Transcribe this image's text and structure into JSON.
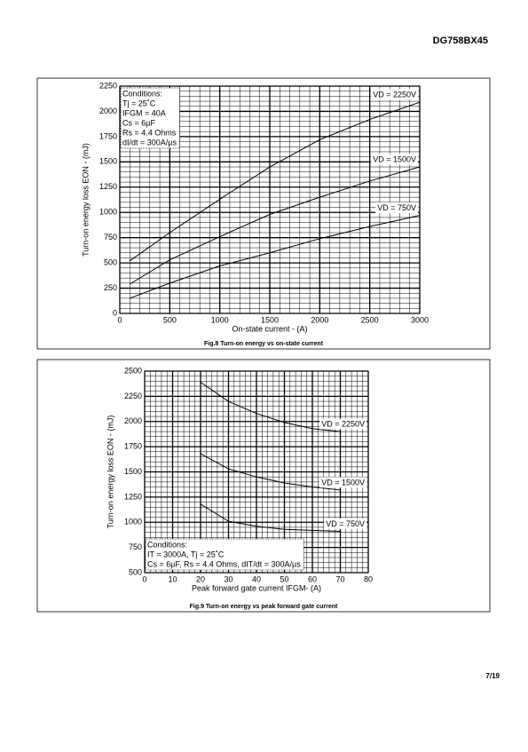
{
  "header": "DG758BX45",
  "footer": "7/19",
  "chart_data": [
    {
      "type": "line",
      "title": "Fig.8 Turn-on energy vs on-state current",
      "x_label": "On-state current - (A)",
      "y_label": "Turn-on energy loss EON - (mJ)",
      "annotation": [
        "Conditions:",
        "Tj = 25˚C",
        "IFGM = 40A",
        "Cs = 6µF",
        "Rs = 4.4 Ohms",
        "dI/dt = 300A/µs"
      ],
      "x": [
        100,
        500,
        1000,
        1500,
        2000,
        2500,
        3000
      ],
      "series": [
        {
          "name": "VD = 2250V",
          "color": "#000000",
          "values": [
            520,
            800,
            1130,
            1450,
            1720,
            1920,
            2090
          ]
        },
        {
          "name": "VD = 1500V",
          "color": "#000000",
          "values": [
            290,
            530,
            760,
            980,
            1150,
            1310,
            1450
          ]
        },
        {
          "name": "VD = 750V",
          "color": "#000000",
          "values": [
            150,
            300,
            470,
            600,
            740,
            860,
            970
          ]
        }
      ],
      "xlim": [
        0,
        3000
      ],
      "xticks": [
        0,
        500,
        1000,
        1500,
        2000,
        2500,
        3000
      ],
      "ylim": [
        0,
        2250
      ],
      "yticks": [
        0,
        250,
        500,
        750,
        1000,
        1250,
        1500,
        1750,
        2000,
        2250
      ],
      "grid": true,
      "minor_divisions": {
        "x": 5,
        "y": 5
      }
    },
    {
      "type": "line",
      "title": "Fig.9 Turn-on energy vs peak forward gate current",
      "x_label": "Peak forward gate current IFGM- (A)",
      "y_label": "Turn-on energy loss EON - (mJ)",
      "annotation": [
        "Conditions:",
        "IT = 3000A, Tj = 25˚C",
        "Cs = 6µF, Rs = 4.4 Ohms, dIT/dt = 300A/µs"
      ],
      "x": [
        20,
        30,
        40,
        50,
        60,
        70
      ],
      "series": [
        {
          "name": "VD = 2250V",
          "color": "#000000",
          "values": [
            2390,
            2200,
            2080,
            1990,
            1930,
            1900
          ]
        },
        {
          "name": "VD = 1500V",
          "color": "#000000",
          "values": [
            1680,
            1530,
            1450,
            1390,
            1350,
            1320
          ]
        },
        {
          "name": "VD = 750V",
          "color": "#000000",
          "values": [
            1180,
            1010,
            960,
            930,
            920,
            910
          ]
        }
      ],
      "xlim": [
        0,
        80
      ],
      "xticks": [
        0,
        10,
        20,
        30,
        40,
        50,
        60,
        70,
        80
      ],
      "ylim": [
        500,
        2500
      ],
      "yticks": [
        500,
        750,
        1000,
        1250,
        1500,
        1750,
        2000,
        2250,
        2500
      ],
      "grid": true,
      "minor_divisions": {
        "x": 5,
        "y": 5
      }
    }
  ]
}
